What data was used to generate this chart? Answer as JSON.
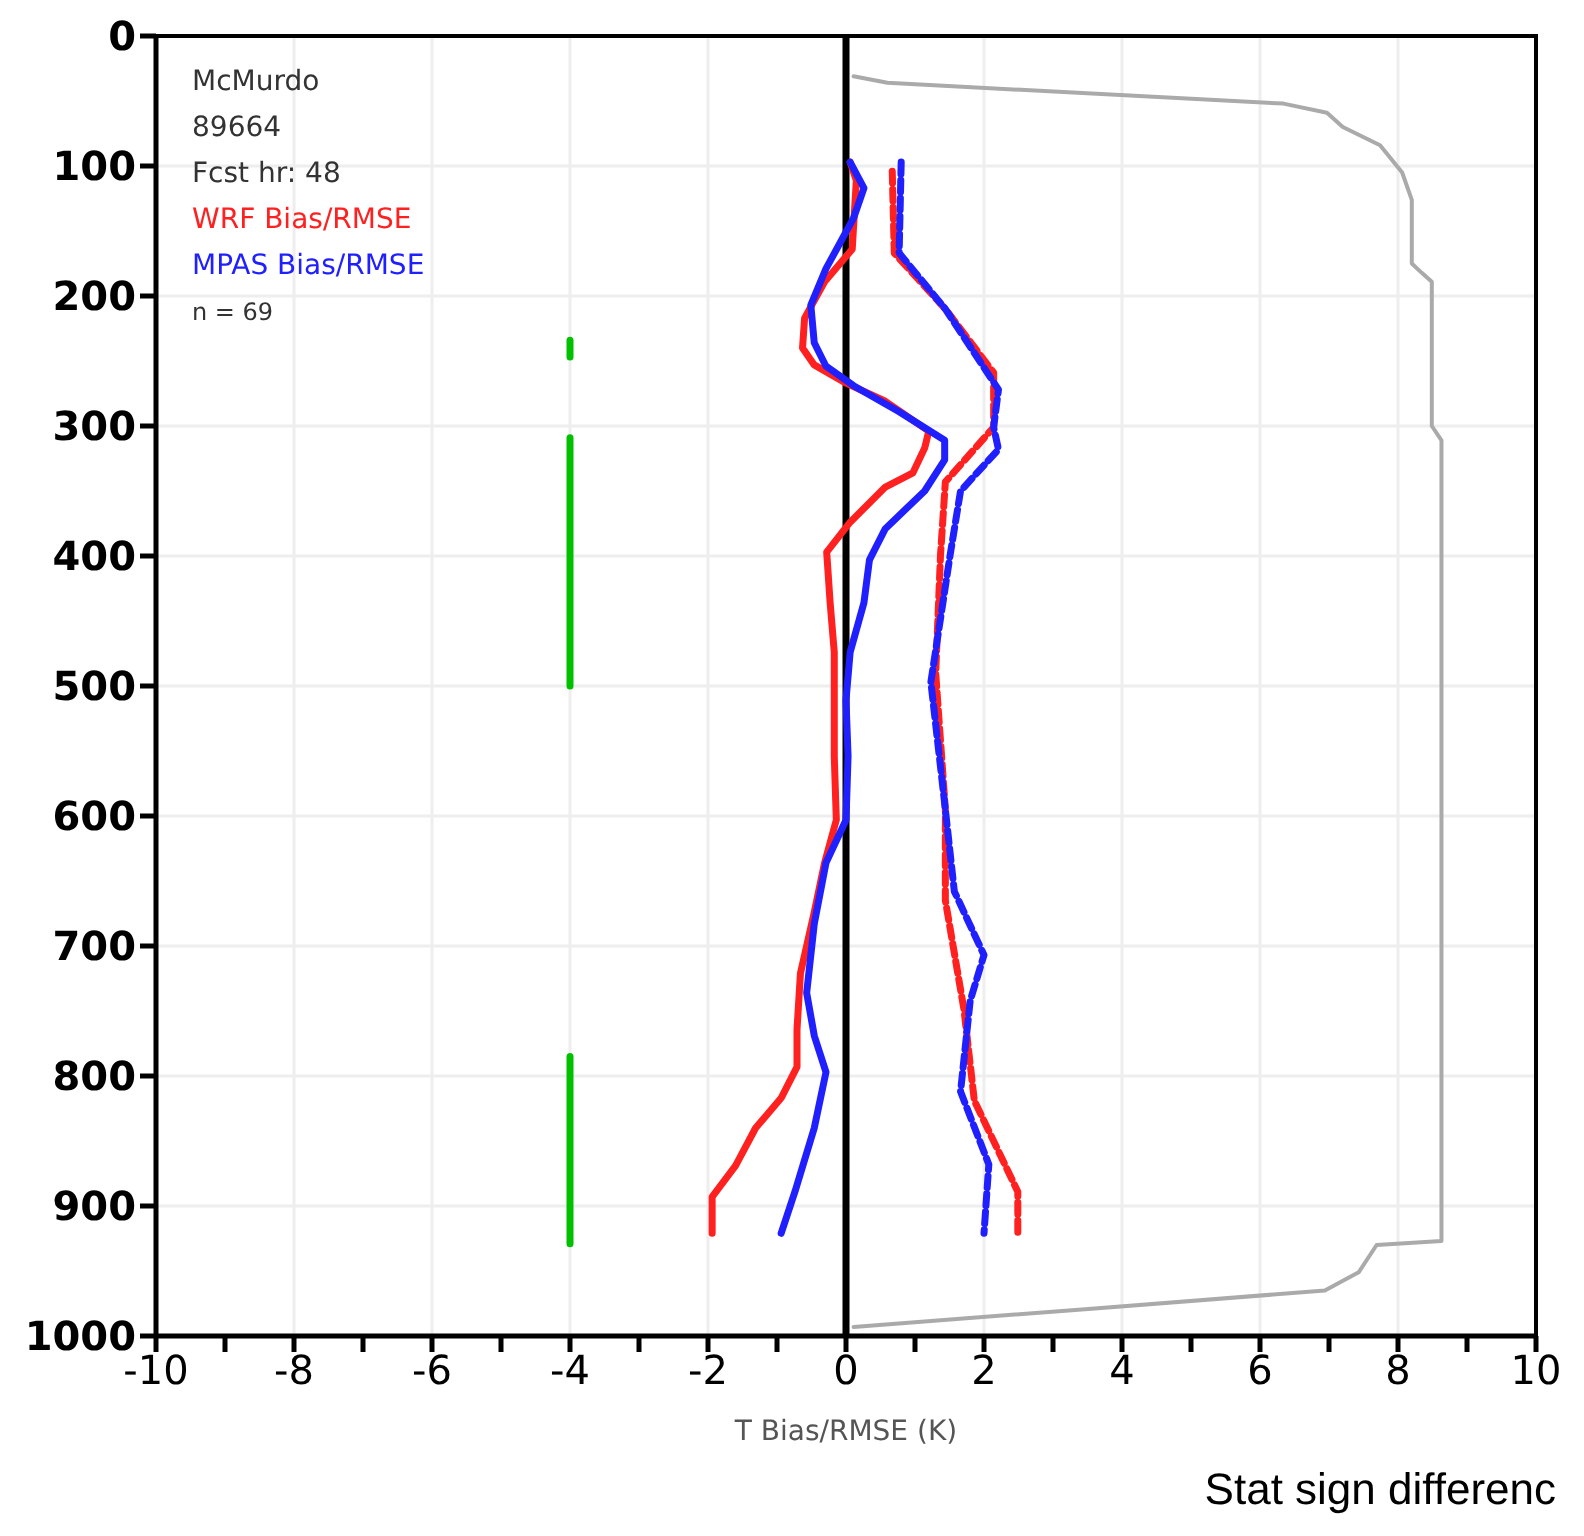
{
  "chart_data": {
    "type": "line",
    "xlabel": "T Bias/RMSE (K)",
    "annotations": [
      "McMurdo",
      "89664",
      "Fcst hr: 48",
      "n = 69",
      "Stat sign differenc"
    ],
    "xlim": [
      -10,
      10
    ],
    "xticks": [
      -10,
      {
        "value": -9,
        "label": null
      },
      -8,
      {
        "value": -7,
        "label": null
      },
      -6,
      {
        "value": -5,
        "label": null
      },
      -4,
      {
        "value": -3,
        "label": null
      },
      -2,
      {
        "value": -1,
        "label": null
      },
      0,
      {
        "value": 1,
        "label": null
      },
      2,
      {
        "value": 3,
        "label": null
      },
      4,
      {
        "value": 5,
        "label": null
      },
      6,
      {
        "value": 7,
        "label": null
      },
      8,
      {
        "value": 9,
        "label": null
      },
      10
    ],
    "ylim": [
      1000,
      0
    ],
    "yticks": [
      0,
      100,
      200,
      300,
      400,
      500,
      600,
      700,
      800,
      900,
      1000
    ],
    "grid": true,
    "legend": "top left",
    "ref_lines": [
      {
        "axis": "x",
        "value": 0,
        "color": "#000000"
      }
    ],
    "series": [
      {
        "name": "WRF Bias/RMSE",
        "color": "#ff2020",
        "line_style": "solid",
        "x": [
          0.06,
          0.15,
          0.09,
          -0.31,
          -0.6,
          -0.63,
          -0.46,
          0,
          0.57,
          1.2,
          1.14,
          0.97,
          0.57,
          0.06,
          -0.28,
          -0.23,
          -0.17,
          -0.17,
          -0.17,
          -0.14,
          -0.31,
          -0.46,
          -0.66,
          -0.71,
          -0.71,
          -0.94,
          -1.31,
          -1.6,
          -1.94,
          -1.94
        ],
        "values": [
          97,
          111,
          164,
          189,
          217,
          240,
          253,
          267,
          281,
          304,
          317,
          336,
          347,
          374,
          397,
          436,
          474,
          511,
          554,
          603,
          636,
          674,
          721,
          764,
          793,
          817,
          840,
          869,
          893,
          921
        ]
      },
      {
        "color": "#ff2020",
        "line_style": "dashed",
        "x": [
          0.67,
          0.7,
          1.44,
          2.14,
          2.14,
          1.44,
          1.37,
          1.3,
          1.44,
          1.44,
          1.71,
          1.86,
          2.49,
          2.49
        ],
        "values": [
          104,
          167,
          210,
          259,
          301,
          343,
          399,
          490,
          595,
          665,
          749,
          819,
          889,
          921
        ]
      },
      {
        "name": "MPAS Bias/RMSE",
        "color": "#2020ff",
        "line_style": "solid",
        "x": [
          0.06,
          0.26,
          0.11,
          -0.29,
          -0.51,
          -0.46,
          -0.29,
          0.11,
          0.77,
          1.43,
          1.43,
          1.14,
          0.57,
          0.34,
          0.26,
          0.06,
          0,
          0.03,
          0,
          -0.29,
          -0.46,
          -0.57,
          -0.46,
          -0.29,
          -0.46,
          -0.74,
          -0.94
        ],
        "values": [
          97,
          117,
          140,
          179,
          207,
          236,
          254,
          269,
          289,
          311,
          326,
          350,
          379,
          403,
          436,
          474,
          511,
          554,
          603,
          636,
          683,
          736,
          769,
          797,
          840,
          889,
          921
        ]
      },
      {
        "color": "#2020ff",
        "line_style": "dashed",
        "x": [
          0.8,
          0.77,
          1.44,
          2.21,
          2.14,
          2.21,
          1.66,
          1.51,
          1.23,
          1.44,
          1.57,
          2.0,
          1.8,
          1.66,
          2.07,
          2.0
        ],
        "values": [
          97,
          167,
          210,
          272,
          301,
          318,
          350,
          399,
          497,
          595,
          658,
          707,
          742,
          812,
          868,
          921
        ]
      },
      {
        "color": "#aaaaaa",
        "line_style": "solid",
        "x": [
          0.11,
          0.6,
          6.34,
          6.97,
          7.2,
          7.74,
          8.06,
          8.2,
          8.2,
          8.34,
          8.49,
          8.49,
          8.63,
          8.63,
          7.69,
          7.43,
          6.94,
          3.56,
          0.11
        ],
        "values": [
          31,
          36,
          52,
          59,
          70,
          84,
          105,
          126,
          175,
          182,
          189,
          300,
          311,
          927,
          930,
          951,
          965,
          979,
          993
        ]
      },
      {
        "color": "#00c000",
        "line_style": "solid",
        "x": [
          -4,
          -4
        ],
        "values": [
          234,
          247
        ]
      },
      {
        "color": "#00c000",
        "line_style": "solid",
        "x": [
          -4,
          -4
        ],
        "values": [
          309,
          500
        ]
      },
      {
        "color": "#00c000",
        "line_style": "solid",
        "x": [
          -4,
          -4
        ],
        "values": [
          785,
          929
        ]
      }
    ]
  }
}
